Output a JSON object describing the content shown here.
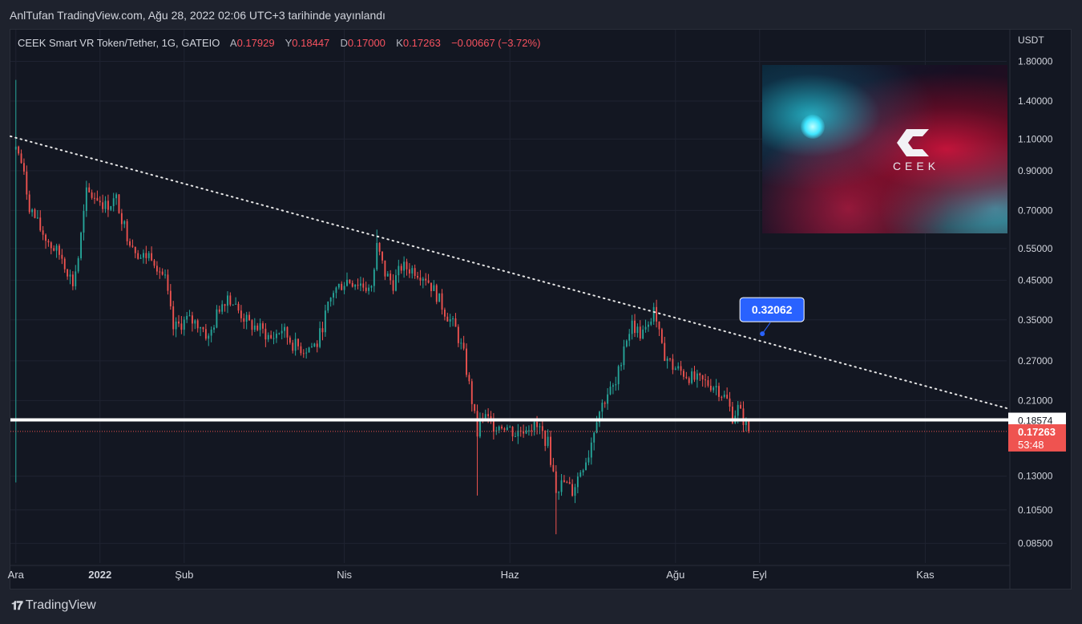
{
  "header": {
    "published_line": "AnlTufan TradingView.com, Ağu 28, 2022 02:06 UTC+3 tarihinde yayınlandı"
  },
  "legend": {
    "symbol": "CEEK Smart VR Token/Tether, 1G, GATEIO",
    "open_label": "A",
    "open_value": "0.17929",
    "high_label": "Y",
    "high_value": "0.18447",
    "low_label": "D",
    "low_value": "0.17000",
    "close_label": "K",
    "close_value": "0.17263",
    "change": "−0.00667 (−3.72%)"
  },
  "price_axis": {
    "currency": "USDT",
    "ticks": [
      "1.80000",
      "1.40000",
      "1.10000",
      "0.90000",
      "0.70000",
      "0.55000",
      "0.45000",
      "0.35000",
      "0.27000",
      "0.21000",
      "0.13000",
      "0.10500",
      "0.08500"
    ]
  },
  "time_axis": {
    "labels": [
      "Ara",
      "2022",
      "Şub",
      "Nis",
      "Haz",
      "Ağu",
      "Eyl",
      "Kas"
    ]
  },
  "markers": {
    "support_value": "0.18574",
    "last_price": "0.17263",
    "countdown": "53:48",
    "callout_value": "0.32062"
  },
  "logo_card": {
    "text": "CEEK"
  },
  "branding": {
    "icon": "tradingview-logo-icon",
    "name": "TradingView"
  },
  "colors": {
    "background": "#131722",
    "up": "#26a69a",
    "down": "#ef5350",
    "callout": "#2962ff",
    "support_line": "#ffffff"
  },
  "chart_data": {
    "type": "candlestick",
    "title": "CEEK Smart VR Token/Tether, 1G, GATEIO",
    "scale": "log",
    "ylabel": "USDT",
    "ylim": [
      0.075,
      2.2
    ],
    "xlim": [
      "2021-11-29",
      "2022-12-01"
    ],
    "x_tick_labels": [
      {
        "date": "2021-12-01",
        "label": "Ara"
      },
      {
        "date": "2022-01-01",
        "label": "2022"
      },
      {
        "date": "2022-02-01",
        "label": "Şub"
      },
      {
        "date": "2022-04-01",
        "label": "Nis"
      },
      {
        "date": "2022-06-01",
        "label": "Haz"
      },
      {
        "date": "2022-08-01",
        "label": "Ağu"
      },
      {
        "date": "2022-09-01",
        "label": "Eyl"
      },
      {
        "date": "2022-11-01",
        "label": "Kas"
      }
    ],
    "y_ticks": [
      1.8,
      1.4,
      1.1,
      0.9,
      0.7,
      0.55,
      0.45,
      0.35,
      0.27,
      0.21,
      0.13,
      0.105,
      0.085
    ],
    "price_path": [
      {
        "date": "2021-12-01",
        "close": 1.05,
        "high": 1.6,
        "low": 0.125
      },
      {
        "date": "2021-12-03",
        "close": 0.95
      },
      {
        "date": "2021-12-06",
        "close": 0.72
      },
      {
        "date": "2021-12-10",
        "close": 0.62
      },
      {
        "date": "2021-12-14",
        "close": 0.56
      },
      {
        "date": "2021-12-18",
        "close": 0.52
      },
      {
        "date": "2021-12-22",
        "close": 0.44
      },
      {
        "date": "2021-12-24",
        "close": 0.52
      },
      {
        "date": "2021-12-27",
        "close": 0.78
      },
      {
        "date": "2021-12-31",
        "close": 0.76
      },
      {
        "date": "2022-01-03",
        "close": 0.72
      },
      {
        "date": "2022-01-07",
        "close": 0.75
      },
      {
        "date": "2022-01-11",
        "close": 0.6
      },
      {
        "date": "2022-01-16",
        "close": 0.52
      },
      {
        "date": "2022-01-20",
        "close": 0.53
      },
      {
        "date": "2022-01-25",
        "close": 0.45
      },
      {
        "date": "2022-01-28",
        "close": 0.33
      },
      {
        "date": "2022-02-02",
        "close": 0.35
      },
      {
        "date": "2022-02-07",
        "close": 0.34
      },
      {
        "date": "2022-02-10",
        "close": 0.31
      },
      {
        "date": "2022-02-14",
        "close": 0.38
      },
      {
        "date": "2022-02-17",
        "close": 0.41
      },
      {
        "date": "2022-02-21",
        "close": 0.37
      },
      {
        "date": "2022-02-25",
        "close": 0.34
      },
      {
        "date": "2022-03-01",
        "close": 0.33
      },
      {
        "date": "2022-03-05",
        "close": 0.31
      },
      {
        "date": "2022-03-09",
        "close": 0.33
      },
      {
        "date": "2022-03-13",
        "close": 0.3
      },
      {
        "date": "2022-03-17",
        "close": 0.29
      },
      {
        "date": "2022-03-22",
        "close": 0.3
      },
      {
        "date": "2022-03-25",
        "close": 0.36
      },
      {
        "date": "2022-03-28",
        "close": 0.42
      },
      {
        "date": "2022-04-02",
        "close": 0.45
      },
      {
        "date": "2022-04-07",
        "close": 0.44
      },
      {
        "date": "2022-04-11",
        "close": 0.42
      },
      {
        "date": "2022-04-13",
        "close": 0.56,
        "high": 0.62
      },
      {
        "date": "2022-04-16",
        "close": 0.47
      },
      {
        "date": "2022-04-19",
        "close": 0.44
      },
      {
        "date": "2022-04-22",
        "close": 0.49
      },
      {
        "date": "2022-04-27",
        "close": 0.48
      },
      {
        "date": "2022-05-01",
        "close": 0.46
      },
      {
        "date": "2022-05-05",
        "close": 0.41
      },
      {
        "date": "2022-05-08",
        "close": 0.37
      },
      {
        "date": "2022-05-12",
        "close": 0.33
      },
      {
        "date": "2022-05-15",
        "close": 0.28
      },
      {
        "date": "2022-05-18",
        "close": 0.21
      },
      {
        "date": "2022-05-20",
        "close": 0.17,
        "low": 0.115
      },
      {
        "date": "2022-05-22",
        "close": 0.19
      },
      {
        "date": "2022-05-26",
        "close": 0.18
      },
      {
        "date": "2022-05-30",
        "close": 0.18
      },
      {
        "date": "2022-06-03",
        "close": 0.17
      },
      {
        "date": "2022-06-08",
        "close": 0.18
      },
      {
        "date": "2022-06-12",
        "close": 0.175
      },
      {
        "date": "2022-06-15",
        "close": 0.16
      },
      {
        "date": "2022-06-18",
        "close": 0.12,
        "low": 0.09
      },
      {
        "date": "2022-06-21",
        "close": 0.125
      },
      {
        "date": "2022-06-24",
        "close": 0.118
      },
      {
        "date": "2022-06-27",
        "close": 0.135
      },
      {
        "date": "2022-06-30",
        "close": 0.15
      },
      {
        "date": "2022-07-03",
        "close": 0.19
      },
      {
        "date": "2022-07-07",
        "close": 0.22
      },
      {
        "date": "2022-07-10",
        "close": 0.23
      },
      {
        "date": "2022-07-13",
        "close": 0.3
      },
      {
        "date": "2022-07-16",
        "close": 0.34
      },
      {
        "date": "2022-07-19",
        "close": 0.32
      },
      {
        "date": "2022-07-22",
        "close": 0.33
      },
      {
        "date": "2022-07-24",
        "close": 0.38,
        "high": 0.39
      },
      {
        "date": "2022-07-27",
        "close": 0.29
      },
      {
        "date": "2022-07-31",
        "close": 0.26
      },
      {
        "date": "2022-08-04",
        "close": 0.25
      },
      {
        "date": "2022-08-08",
        "close": 0.24
      },
      {
        "date": "2022-08-12",
        "close": 0.235
      },
      {
        "date": "2022-08-16",
        "close": 0.23
      },
      {
        "date": "2022-08-20",
        "close": 0.21
      },
      {
        "date": "2022-08-22",
        "close": 0.19
      },
      {
        "date": "2022-08-24",
        "close": 0.2
      },
      {
        "date": "2022-08-27",
        "close": 0.18
      },
      {
        "date": "2022-08-28",
        "close": 0.17263
      }
    ],
    "trendline": {
      "start": {
        "date": "2021-11-29",
        "value": 1.12
      },
      "end": {
        "date": "2022-12-01",
        "value": 0.2
      },
      "style": "dotted"
    },
    "horizontal_line": {
      "value": 0.18574
    },
    "last_price": 0.17263,
    "callout": {
      "date": "2022-09-02",
      "value": 0.32062
    }
  }
}
